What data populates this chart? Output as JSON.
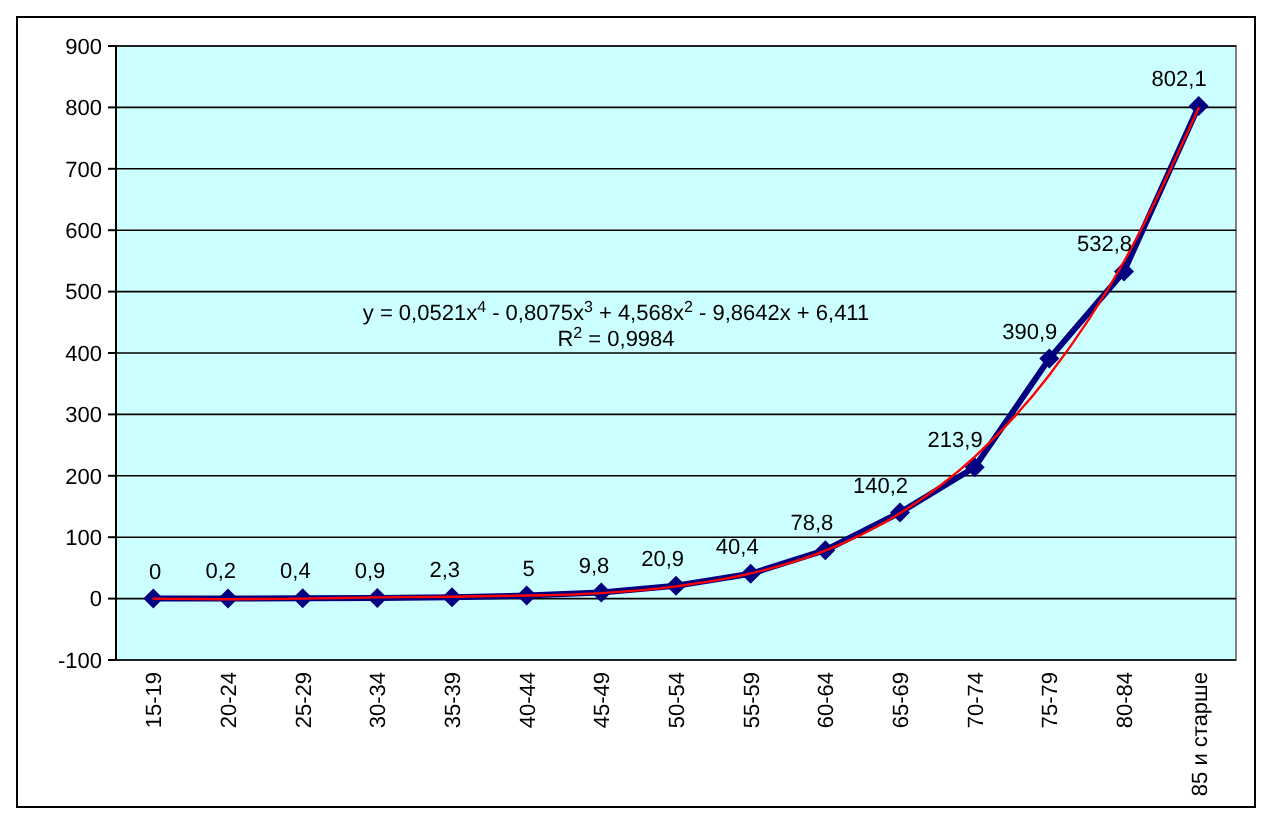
{
  "chart_data": {
    "type": "line",
    "categories": [
      "15-19",
      "20-24",
      "25-29",
      "30-34",
      "35-39",
      "40-44",
      "45-49",
      "50-54",
      "55-59",
      "60-64",
      "65-69",
      "70-74",
      "75-79",
      "80-84",
      "85 и старше"
    ],
    "series": [
      {
        "color": "#000080",
        "marker": "diamond",
        "values": [
          0,
          0.2,
          0.4,
          0.9,
          2.3,
          5,
          9.8,
          20.9,
          40.4,
          78.8,
          140.2,
          213.9,
          390.9,
          532.8,
          802.1
        ],
        "value_labels": [
          "0",
          "0,2",
          "0,4",
          "0,9",
          "2,3",
          "5",
          "9,8",
          "20,9",
          "40,4",
          "78,8",
          "140,2",
          "213,9",
          "390,9",
          "532,8",
          "802,1"
        ]
      },
      {
        "type": "line",
        "color": "#ff0000",
        "marker": "none",
        "x": [
          "15-19",
          "20-24",
          "25-29",
          "30-34",
          "35-39",
          "40-44",
          "45-49",
          "50-54",
          "55-59",
          "60-64",
          "65-69",
          "70-74",
          "75-79",
          "80-84",
          "85 и старше"
        ],
        "values": [
          0,
          -1,
          0,
          2,
          3,
          5,
          9,
          20,
          41,
          78,
          139,
          231,
          364,
          549,
          799
        ]
      }
    ],
    "ylim": [
      -100,
      900
    ],
    "yticks": [
      -100,
      0,
      100,
      200,
      300,
      400,
      500,
      600,
      700,
      800,
      900
    ],
    "grid": "y",
    "annotations": [
      "y = 0,0521x$^{4}$ - 0,8075x$^{3}$ + 4,568x$^{2}$ - 9,8642x + 6,411",
      "R$^{2}$ = 0,9984"
    ]
  }
}
